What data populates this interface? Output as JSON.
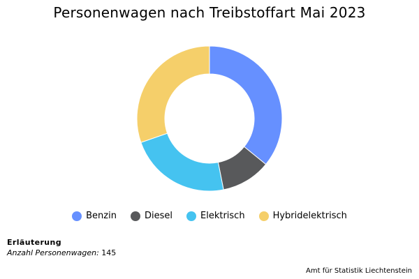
{
  "title": "Personenwagen nach Treibstoffart Mai 2023",
  "chart_data": {
    "type": "pie",
    "title": "Personenwagen nach Treibstoffart Mai 2023",
    "donut": true,
    "legend_position": "bottom",
    "categories": [
      "Benzin",
      "Diesel",
      "Elektrisch",
      "Hybridelektrisch"
    ],
    "values": [
      52,
      16,
      33,
      44
    ],
    "colors": [
      "#6690ff",
      "#58595b",
      "#45c3f0",
      "#f5cf6a"
    ]
  },
  "note": {
    "heading": "Erläuterung",
    "label": "Anzahl Personenwagen:",
    "value": "145"
  },
  "source": "Amt für Statistik Liechtenstein"
}
